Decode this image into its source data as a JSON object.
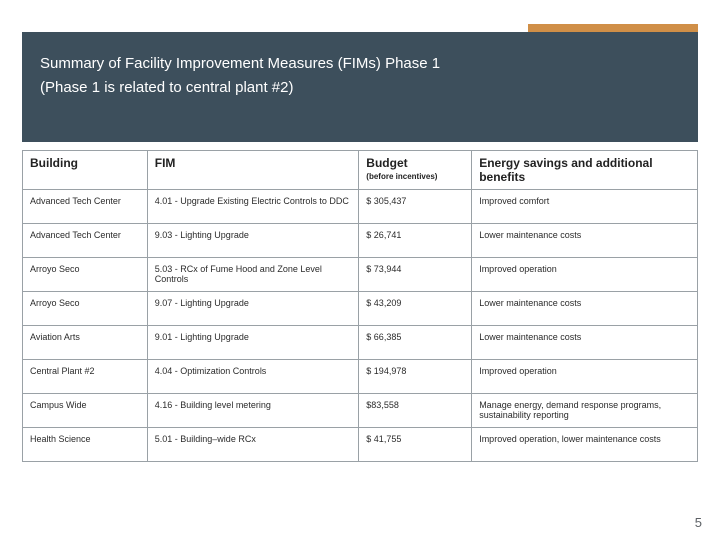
{
  "colors": {
    "header_bg": "#3d4f5c",
    "accent_bg": "#d08f47",
    "border": "#9aa1a6",
    "text": "#2b2b2b",
    "title_text": "#ffffff"
  },
  "title": {
    "line1": "Summary of Facility Improvement Measures (FIMs) Phase 1",
    "line2": "(Phase 1 is related to central plant #2)"
  },
  "table": {
    "columns": [
      {
        "header": "Building",
        "sub": ""
      },
      {
        "header": "FIM",
        "sub": ""
      },
      {
        "header": "Budget",
        "sub": "(before incentives)"
      },
      {
        "header": "Energy savings and additional benefits",
        "sub": ""
      }
    ],
    "rows": [
      [
        "Advanced Tech Center",
        "4.01 - Upgrade Existing Electric Controls to DDC",
        "$ 305,437",
        "Improved comfort"
      ],
      [
        "Advanced Tech Center",
        "9.03 - Lighting Upgrade",
        "$ 26,741",
        "Lower maintenance costs"
      ],
      [
        "Arroyo Seco",
        "5.03 - RCx of Fume Hood and Zone Level Controls",
        "$ 73,944",
        "Improved operation"
      ],
      [
        "Arroyo Seco",
        "9.07 - Lighting Upgrade",
        "$ 43,209",
        "Lower maintenance costs"
      ],
      [
        "Aviation Arts",
        "9.01 - Lighting Upgrade",
        "$ 66,385",
        "Lower maintenance costs"
      ],
      [
        "Central Plant #2",
        "4.04 - Optimization Controls",
        "$ 194,978",
        "Improved operation"
      ],
      [
        "Campus Wide",
        "4.16 - Building level metering",
        "$83,558",
        "Manage energy, demand response programs, sustainability reporting"
      ],
      [
        "Health Science",
        "5.01 - Building–wide RCx",
        "$ 41,755",
        "Improved operation, lower maintenance costs"
      ]
    ]
  },
  "page_number": "5"
}
